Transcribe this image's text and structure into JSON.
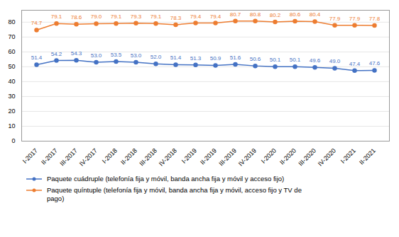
{
  "chart_data": {
    "type": "line",
    "categories": [
      "I-2017",
      "II-2017",
      "III-2017",
      "IV-2017",
      "I-2018",
      "II-2018",
      "III-2018",
      "IV-2018",
      "I-2019",
      "II-2019",
      "III-2019",
      "IV-2019",
      "I-2020",
      "II-2020",
      "III-2020",
      "IV-2020",
      "I-2021",
      "II-2021"
    ],
    "series": [
      {
        "name": "Paquete cuádruple (telefonía fija y móvil, banda ancha fija y móvil y acceso fijo)",
        "color": "#4472c4",
        "marker": "circle",
        "values": [
          51.4,
          54.2,
          54.3,
          53.0,
          53.5,
          53.0,
          52.0,
          51.4,
          51.3,
          50.9,
          51.6,
          50.6,
          50.1,
          50.1,
          49.6,
          49.0,
          47.4,
          47.6
        ],
        "value_labels": [
          "51.4",
          "54.2",
          "54.3",
          "53.0",
          "53.5",
          "53.0",
          "52.0",
          "51.4",
          "51.3",
          "50.9",
          "51.6",
          "50.6",
          "50.1",
          "50.1",
          "49.6",
          "49.0",
          "47.4",
          "47.6"
        ]
      },
      {
        "name": "Paquete quíntuple (telefonía fija y móvil, banda ancha fija y móvil, acceso fijo y TV de\npago)",
        "color": "#ed7d31",
        "marker": "circle",
        "values": [
          74.7,
          79.1,
          78.6,
          79.0,
          79.1,
          79.3,
          79.1,
          78.3,
          79.4,
          79.4,
          80.7,
          80.8,
          80.2,
          80.6,
          80.4,
          77.9,
          77.9,
          77.8
        ],
        "value_labels": [
          "74.7",
          "79.1",
          "78.6",
          "79.0",
          "79.1",
          "79.3",
          "79.1",
          "78.3",
          "79.4",
          "79.4",
          "80.7",
          "80.8",
          "80.2",
          "80.6",
          "80.4",
          "77.9",
          "77.9",
          "77.8"
        ]
      }
    ],
    "ylim": [
      0,
      88
    ],
    "yticks": [
      0,
      10,
      20,
      30,
      40,
      50,
      60,
      70,
      80
    ],
    "grid": true,
    "data_labels": true,
    "legend": "bottom"
  }
}
